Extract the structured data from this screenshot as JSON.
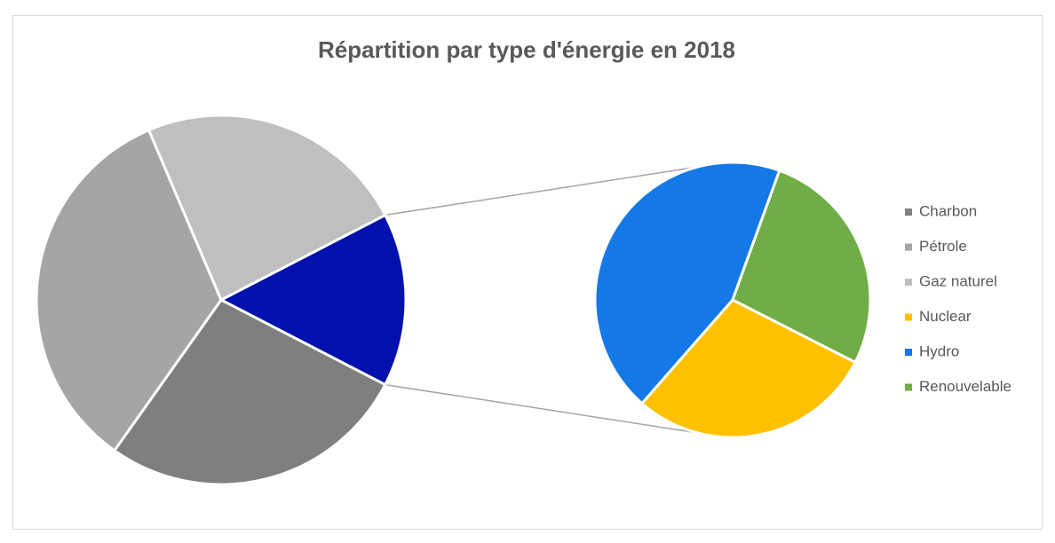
{
  "chart_data": {
    "type": "pie-of-pie",
    "title": "Répartition par type d'énergie en 2018",
    "categories": [
      "Charbon",
      "Pétrole",
      "Gaz naturel",
      "Nuclear",
      "Hydro",
      "Renouvelable"
    ],
    "values": [
      27.2,
      33.8,
      23.8,
      4.4,
      6.7,
      4.1
    ],
    "colors": [
      "#7f7f7f",
      "#a5a5a5",
      "#bfbfbf",
      "#ffc000",
      "#1479e6",
      "#70ad47"
    ],
    "secondary_count": 3,
    "other_color": "#0011ad",
    "legend": "right"
  }
}
